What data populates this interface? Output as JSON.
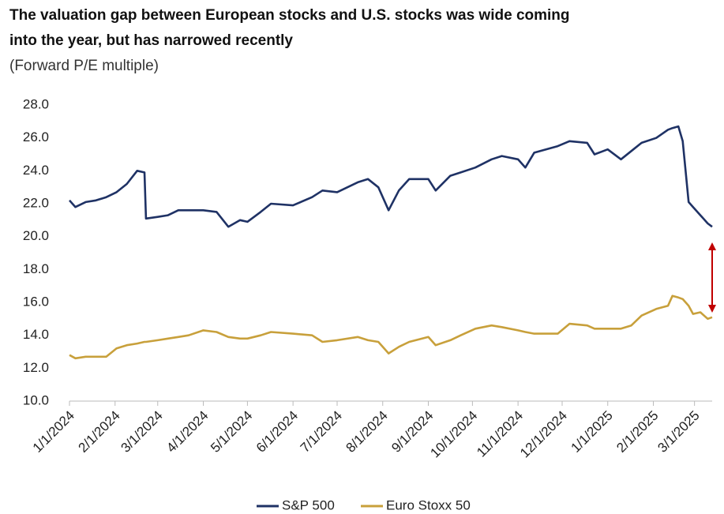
{
  "chart_data": {
    "type": "line",
    "title": "The valuation gap between European stocks and U.S. stocks was wide coming into the year, but has narrowed recently",
    "subtitle": "(Forward P/E multiple)",
    "x": [
      "1/1/2024",
      "1/5/2024",
      "1/12/2024",
      "1/19/2024",
      "1/26/2024",
      "2/2/2024",
      "2/9/2024",
      "2/16/2024",
      "2/21/2024",
      "2/22/2024",
      "3/1/2024",
      "3/8/2024",
      "3/15/2024",
      "3/22/2024",
      "4/1/2024",
      "4/10/2024",
      "4/18/2024",
      "4/26/2024",
      "5/1/2024",
      "5/10/2024",
      "5/17/2024",
      "6/1/2024",
      "6/14/2024",
      "6/21/2024",
      "7/1/2024",
      "7/15/2024",
      "7/22/2024",
      "7/29/2024",
      "8/5/2024",
      "8/12/2024",
      "8/19/2024",
      "9/1/2024",
      "9/6/2024",
      "9/16/2024",
      "9/23/2024",
      "10/3/2024",
      "10/14/2024",
      "10/21/2024",
      "11/1/2024",
      "11/6/2024",
      "11/12/2024",
      "11/28/2024",
      "12/6/2024",
      "12/18/2024",
      "12/23/2024",
      "1/1/2025",
      "1/10/2025",
      "1/17/2025",
      "1/24/2025",
      "2/3/2025",
      "2/11/2025",
      "2/14/2025",
      "2/18/2025",
      "2/21/2025",
      "2/25/2025",
      "2/28/2025",
      "3/5/2025",
      "3/10/2025",
      "3/13/2025"
    ],
    "series": [
      {
        "name": "S&P 500",
        "color": "#1f3265",
        "values": [
          22.2,
          21.8,
          22.1,
          22.2,
          22.4,
          22.7,
          23.2,
          24.0,
          23.9,
          21.1,
          21.2,
          21.3,
          21.6,
          21.6,
          21.6,
          21.5,
          20.6,
          21.0,
          20.9,
          21.5,
          22.0,
          21.9,
          22.4,
          22.8,
          22.7,
          23.3,
          23.5,
          23.0,
          21.6,
          22.8,
          23.5,
          23.5,
          22.8,
          23.7,
          23.9,
          24.2,
          24.7,
          24.9,
          24.7,
          24.2,
          25.1,
          25.5,
          25.8,
          25.7,
          25.0,
          25.3,
          24.7,
          25.2,
          25.7,
          26.0,
          26.5,
          26.6,
          26.7,
          25.8,
          22.1,
          21.8,
          21.3,
          20.8,
          20.6
        ]
      },
      {
        "name": "Euro Stoxx 50",
        "color": "#c8a03b",
        "values": [
          12.8,
          12.6,
          12.7,
          12.7,
          12.7,
          13.2,
          13.4,
          13.5,
          13.6,
          13.6,
          13.7,
          13.8,
          13.9,
          14.0,
          14.3,
          14.2,
          13.9,
          13.8,
          13.8,
          14.0,
          14.2,
          14.1,
          14.0,
          13.6,
          13.7,
          13.9,
          13.7,
          13.6,
          12.9,
          13.3,
          13.6,
          13.9,
          13.4,
          13.7,
          14.0,
          14.4,
          14.6,
          14.5,
          14.3,
          14.2,
          14.1,
          14.1,
          14.7,
          14.6,
          14.4,
          14.4,
          14.4,
          14.6,
          15.2,
          15.6,
          15.8,
          16.4,
          16.3,
          16.2,
          15.8,
          15.3,
          15.4,
          15.0,
          15.1
        ]
      }
    ],
    "xlim": [
      "1/1/2024",
      "3/13/2025"
    ],
    "xticks": [
      "1/1/2024",
      "2/1/2024",
      "3/1/2024",
      "4/1/2024",
      "5/1/2024",
      "6/1/2024",
      "7/1/2024",
      "8/1/2024",
      "9/1/2024",
      "10/1/2024",
      "11/1/2024",
      "12/1/2024",
      "1/1/2025",
      "2/1/2025",
      "3/1/2025"
    ],
    "ylim": [
      10,
      28
    ],
    "yticks": [
      {
        "value": 10,
        "label": "10.0"
      },
      {
        "value": 12,
        "label": "12.0"
      },
      {
        "value": 14,
        "label": "14.0"
      },
      {
        "value": 16,
        "label": "16.0"
      },
      {
        "value": 18,
        "label": "18.0"
      },
      {
        "value": 20,
        "label": "20.0"
      },
      {
        "value": 22,
        "label": "22.0"
      },
      {
        "value": 24,
        "label": "24.0"
      },
      {
        "value": 26,
        "label": "26.0"
      },
      {
        "value": 28,
        "label": "28.0"
      }
    ],
    "grid": false,
    "legend": "bottom"
  }
}
